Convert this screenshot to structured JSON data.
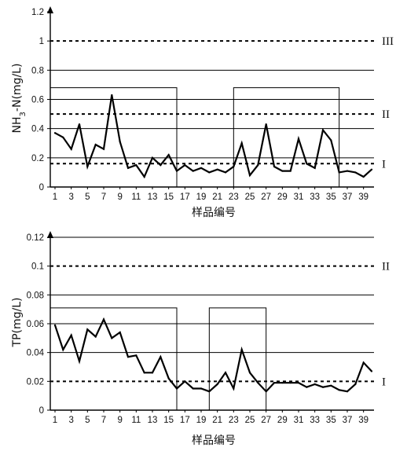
{
  "chart_data": [
    {
      "type": "line",
      "title": "",
      "xlabel": "样品编号",
      "ylabel": "NH3-N(mg/L)",
      "ylabel_parts": [
        "NH",
        "3",
        "-N(mg/L)"
      ],
      "xlim": [
        1,
        40
      ],
      "ylim": [
        0,
        1.2
      ],
      "x_ticks": [
        1,
        3,
        5,
        7,
        9,
        11,
        13,
        15,
        17,
        19,
        21,
        23,
        25,
        27,
        29,
        31,
        33,
        35,
        37,
        39
      ],
      "y_ticks": [
        "0",
        "0.2",
        "0.4",
        "0.6",
        "0.8",
        "1",
        "1.2"
      ],
      "y_tick_values": [
        0,
        0.2,
        0.4,
        0.6,
        0.8,
        1.0,
        1.2
      ],
      "grid_y": [
        0.2,
        0.4,
        0.6,
        0.8
      ],
      "x": [
        1,
        2,
        3,
        4,
        5,
        6,
        7,
        8,
        9,
        10,
        11,
        12,
        13,
        14,
        15,
        16,
        17,
        18,
        19,
        20,
        21,
        22,
        23,
        24,
        25,
        26,
        27,
        28,
        29,
        30,
        31,
        32,
        33,
        34,
        35,
        36,
        37,
        38,
        39,
        40
      ],
      "values": [
        0.37,
        0.34,
        0.26,
        0.43,
        0.14,
        0.29,
        0.26,
        0.63,
        0.31,
        0.13,
        0.15,
        0.07,
        0.2,
        0.15,
        0.22,
        0.11,
        0.15,
        0.11,
        0.13,
        0.1,
        0.12,
        0.1,
        0.14,
        0.3,
        0.08,
        0.15,
        0.43,
        0.14,
        0.11,
        0.11,
        0.33,
        0.16,
        0.13,
        0.39,
        0.32,
        0.1,
        0.11,
        0.1,
        0.07,
        0.12
      ],
      "reference_lines": [
        {
          "label": "III",
          "value": 1.0
        },
        {
          "label": "II",
          "value": 0.5
        },
        {
          "label": "I",
          "value": 0.16
        }
      ],
      "highlight_ranges": [
        {
          "x_start": 1,
          "x_end": 16,
          "top": 0.68
        },
        {
          "x_start": 23,
          "x_end": 36,
          "top": 0.68
        }
      ]
    },
    {
      "type": "line",
      "title": "",
      "xlabel": "样品编号",
      "ylabel": "TP(mg/L)",
      "xlim": [
        1,
        40
      ],
      "ylim": [
        0,
        0.12
      ],
      "x_ticks": [
        1,
        3,
        5,
        7,
        9,
        11,
        13,
        15,
        17,
        19,
        21,
        23,
        25,
        27,
        29,
        31,
        33,
        35,
        37,
        39
      ],
      "y_ticks": [
        "0",
        "0.02",
        "0.04",
        "0.06",
        "0.08",
        "0.1",
        "0.12"
      ],
      "y_tick_values": [
        0,
        0.02,
        0.04,
        0.06,
        0.08,
        0.1,
        0.12
      ],
      "grid_y": [
        0.04,
        0.06,
        0.08,
        0.12
      ],
      "x": [
        1,
        2,
        3,
        4,
        5,
        6,
        7,
        8,
        9,
        10,
        11,
        12,
        13,
        14,
        15,
        16,
        17,
        18,
        19,
        20,
        21,
        22,
        23,
        24,
        25,
        26,
        27,
        28,
        29,
        30,
        31,
        32,
        33,
        34,
        35,
        36,
        37,
        38,
        39,
        40
      ],
      "values": [
        0.059,
        0.042,
        0.052,
        0.034,
        0.056,
        0.051,
        0.063,
        0.05,
        0.054,
        0.037,
        0.038,
        0.026,
        0.026,
        0.037,
        0.022,
        0.015,
        0.02,
        0.015,
        0.015,
        0.013,
        0.018,
        0.026,
        0.015,
        0.042,
        0.026,
        0.019,
        0.013,
        0.019,
        0.019,
        0.019,
        0.019,
        0.016,
        0.018,
        0.016,
        0.017,
        0.014,
        0.013,
        0.018,
        0.033,
        0.027
      ],
      "reference_lines": [
        {
          "label": "II",
          "value": 0.1
        },
        {
          "label": "I",
          "value": 0.02
        }
      ],
      "highlight_ranges": [
        {
          "x_start": 1,
          "x_end": 16,
          "top": 0.071
        },
        {
          "x_start": 20,
          "x_end": 27,
          "top": 0.071
        }
      ]
    }
  ]
}
